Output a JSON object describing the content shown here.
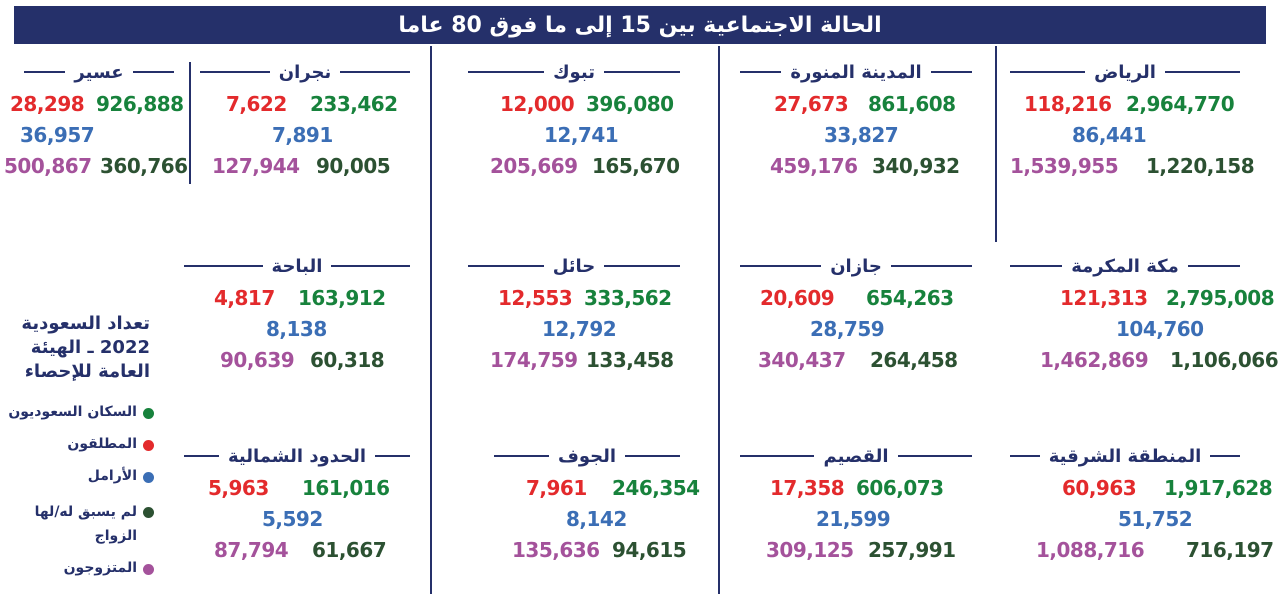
{
  "title": "الحالة الاجتماعية بين 15 إلى ما فوق 80 عاما",
  "source": "تعداد السعودية 2022 ـ الهيئة العامة للإحصاء",
  "legend": [
    {
      "label": "السكان السعوديون",
      "color": "#17823c"
    },
    {
      "label": "المطلقون",
      "color": "#e32a2c"
    },
    {
      "label": "الأرامل",
      "color": "#3b6eb5"
    },
    {
      "label": "لم يسبق له/لها الزواج",
      "color": "#2c5132"
    },
    {
      "label": "المتزوجون",
      "color": "#a4529b"
    }
  ],
  "regions": [
    {
      "name": "الرياض",
      "population": "2,964,770",
      "divorced": "118,216",
      "widowed": "86,441",
      "never_married": "1,220,158",
      "married": "1,539,955"
    },
    {
      "name": "المدينة المنورة",
      "population": "861,608",
      "divorced": "27,673",
      "widowed": "33,827",
      "never_married": "340,932",
      "married": "459,176"
    },
    {
      "name": "تبوك",
      "population": "396,080",
      "divorced": "12,000",
      "widowed": "12,741",
      "never_married": "165,670",
      "married": "205,669"
    },
    {
      "name": "نجران",
      "population": "233,462",
      "divorced": "7,622",
      "widowed": "7,891",
      "never_married": "90,005",
      "married": "127,944"
    },
    {
      "name": "عسير",
      "population": "926,888",
      "divorced": "28,298",
      "widowed": "36,957",
      "never_married": "360,766",
      "married": "500,867"
    },
    {
      "name": "مكة المكرمة",
      "population": "2,795,008",
      "divorced": "121,313",
      "widowed": "104,760",
      "never_married": "1,106,066",
      "married": "1,462,869"
    },
    {
      "name": "جازان",
      "population": "654,263",
      "divorced": "20,609",
      "widowed": "28,759",
      "never_married": "264,458",
      "married": "340,437"
    },
    {
      "name": "حائل",
      "population": "333,562",
      "divorced": "12,553",
      "widowed": "12,792",
      "never_married": "133,458",
      "married": "174,759"
    },
    {
      "name": "الباحة",
      "population": "163,912",
      "divorced": "4,817",
      "widowed": "8,138",
      "never_married": "60,318",
      "married": "90,639"
    },
    {
      "name": "المنطقة الشرقية",
      "population": "1,917,628",
      "divorced": "60,963",
      "widowed": "51,752",
      "never_married": "716,197",
      "married": "1,088,716"
    },
    {
      "name": "القصيم",
      "population": "606,073",
      "divorced": "17,358",
      "widowed": "21,599",
      "never_married": "257,991",
      "married": "309,125"
    },
    {
      "name": "الجوف",
      "population": "246,354",
      "divorced": "7,961",
      "widowed": "8,142",
      "never_married": "94,615",
      "married": "135,636"
    },
    {
      "name": "الحدود الشمالية",
      "population": "161,016",
      "divorced": "5,963",
      "widowed": "5,592",
      "never_married": "61,667",
      "married": "87,794"
    }
  ]
}
